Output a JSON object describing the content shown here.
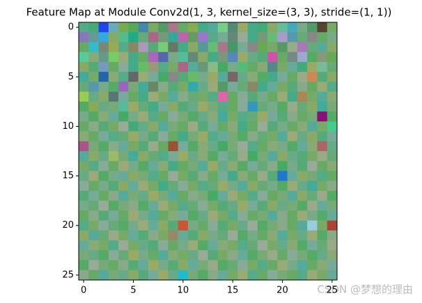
{
  "chart_data": {
    "type": "image",
    "title": "Feature Map at Module Conv2d(1, 3, kernel_size=(3, 3), stride=(1, 1))",
    "watermark": "CSDN @梦想的理由",
    "xlim": [
      -0.5,
      25.5
    ],
    "ylim": [
      25.5,
      -0.5
    ],
    "xticks": [
      0,
      5,
      10,
      15,
      20,
      25
    ],
    "yticks": [
      0,
      5,
      10,
      15,
      20,
      25
    ],
    "pixels": [
      [
        "#5a8",
        "#4a7",
        "#24e",
        "#6ab",
        "#7a5",
        "#5a5",
        "#48a",
        "#7a6",
        "#596",
        "#a78",
        "#6a6",
        "#8a5",
        "#4a8",
        "#5a9",
        "#7c8",
        "#587",
        "#9a6",
        "#4a8",
        "#4a7",
        "#8a6",
        "#6b9",
        "#4ab",
        "#7a8",
        "#596",
        "#543",
        "#7a6"
      ],
      [
        "#87b",
        "#699",
        "#3ad",
        "#8a6",
        "#5b8",
        "#2a8",
        "#6a7",
        "#a68",
        "#797",
        "#3a9",
        "#b6a",
        "#696",
        "#97c",
        "#5a8",
        "#7a9",
        "#687",
        "#9a9",
        "#4a8",
        "#797",
        "#6b7",
        "#a9c",
        "#59a",
        "#6a7",
        "#888",
        "#6a6",
        "#7a8"
      ],
      [
        "#6a6",
        "#3bc",
        "#787",
        "#9a5",
        "#5a8",
        "#886",
        "#a9b",
        "#5a7",
        "#7c7",
        "#676",
        "#4a8",
        "#8a6",
        "#599",
        "#6b7",
        "#a78",
        "#496",
        "#7a9",
        "#888",
        "#6a5",
        "#7a6",
        "#596",
        "#9a8",
        "#a7b",
        "#6a7",
        "#5a9",
        "#8a6"
      ],
      [
        "#5c9",
        "#8a7",
        "#698",
        "#7c6",
        "#9a7",
        "#4a8",
        "#6a6",
        "#a6b",
        "#56a",
        "#7a8",
        "#5b9",
        "#687",
        "#8a6",
        "#4a8",
        "#797",
        "#58b",
        "#9a6",
        "#6a8",
        "#5a7",
        "#c5a",
        "#6a6",
        "#788",
        "#9ac",
        "#5a6",
        "#897",
        "#6a5"
      ],
      [
        "#8a6",
        "#5a7",
        "#79b",
        "#6a6",
        "#8a9",
        "#4a8",
        "#6b6",
        "#997",
        "#5a8",
        "#7a6",
        "#a68",
        "#5a9",
        "#697",
        "#8b8",
        "#4a6",
        "#7a8",
        "#5b7",
        "#6a6",
        "#8a7",
        "#588",
        "#7a6",
        "#6a9",
        "#4a7",
        "#9a6",
        "#7b9",
        "#6a7"
      ],
      [
        "#4a9",
        "#7a6",
        "#26a",
        "#8a7",
        "#5a8",
        "#666",
        "#9a7",
        "#7a9",
        "#4a6",
        "#888",
        "#5a7",
        "#6b6",
        "#7a8",
        "#9a6",
        "#5a9",
        "#766",
        "#6a8",
        "#8a7",
        "#5a6",
        "#4a8",
        "#7a9",
        "#6a6",
        "#9a8",
        "#c85",
        "#5a7",
        "#8a6"
      ],
      [
        "#6a7",
        "#59a",
        "#7a8",
        "#5a6",
        "#96b",
        "#7a7",
        "#4a9",
        "#686",
        "#8a8",
        "#5a7",
        "#7a6",
        "#3aa",
        "#6a8",
        "#9a7",
        "#596",
        "#7a9",
        "#6a7",
        "#886",
        "#4a8",
        "#6a9",
        "#7a6",
        "#5a7",
        "#8a8",
        "#6a6",
        "#9a7",
        "#5a8"
      ],
      [
        "#9c5",
        "#6a8",
        "#8a6",
        "#577",
        "#7a9",
        "#6a6",
        "#4a8",
        "#9a7",
        "#7a6",
        "#5a9",
        "#8a8",
        "#6a7",
        "#7a6",
        "#5a8",
        "#d6a",
        "#6a6",
        "#8a9",
        "#5a7",
        "#7a8",
        "#6a6",
        "#9a7",
        "#4a8",
        "#a85",
        "#7a6",
        "#5a9",
        "#8a7"
      ],
      [
        "#5a6",
        "#8a5",
        "#6a8",
        "#7a7",
        "#5b9",
        "#9a6",
        "#6a7",
        "#4a8",
        "#7a9",
        "#8a6",
        "#5a7",
        "#6a8",
        "#9a6",
        "#7a7",
        "#5a8",
        "#6a6",
        "#8a9",
        "#39b",
        "#6a7",
        "#7a8",
        "#5a6",
        "#9a8",
        "#6a7",
        "#8a6",
        "#4a9",
        "#7a7"
      ],
      [
        "#7a8",
        "#5a6",
        "#8a7",
        "#6a9",
        "#4a6",
        "#7a8",
        "#9a7",
        "#5a8",
        "#6a6",
        "#8a9",
        "#7a7",
        "#5a6",
        "#6a8",
        "#8a7",
        "#4a9",
        "#7a6",
        "#5a8",
        "#6a7",
        "#9a6",
        "#7a9",
        "#5a7",
        "#8a8",
        "#6a6",
        "#7a7",
        "#817",
        "#5a6"
      ],
      [
        "#6a6",
        "#8a8",
        "#5a7",
        "#7a6",
        "#9a9",
        "#4a7",
        "#6a8",
        "#8a6",
        "#5a9",
        "#7a7",
        "#6a6",
        "#9a8",
        "#5a7",
        "#7a9",
        "#6a6",
        "#8a7",
        "#4a8",
        "#6a6",
        "#9a9",
        "#5a7",
        "#7a8",
        "#6a6",
        "#8a7",
        "#5a9",
        "#7a6",
        "#4c8"
      ],
      [
        "#8a7",
        "#6a6",
        "#7a9",
        "#5a8",
        "#6a7",
        "#9a6",
        "#7a8",
        "#5a7",
        "#8a9",
        "#6a6",
        "#4a8",
        "#7a7",
        "#9a6",
        "#5a8",
        "#6a9",
        "#7a7",
        "#5a6",
        "#8a8",
        "#6a7",
        "#7a6",
        "#5a9",
        "#9a7",
        "#6a8",
        "#8a6",
        "#5a7",
        "#7a9"
      ],
      [
        "#a58",
        "#7a7",
        "#5a6",
        "#8a8",
        "#6a9",
        "#7a6",
        "#5a7",
        "#9a8",
        "#6a6",
        "#953",
        "#7a9",
        "#5a6",
        "#8a7",
        "#6a8",
        "#4a6",
        "#7a7",
        "#9a9",
        "#5a8",
        "#6a6",
        "#8a7",
        "#7a8",
        "#5a6",
        "#6a9",
        "#8a7",
        "#a66",
        "#6a8"
      ],
      [
        "#5a9",
        "#8a6",
        "#6a8",
        "#9b6",
        "#7a7",
        "#4a9",
        "#8a6",
        "#6a7",
        "#5a8",
        "#7a9",
        "#9a6",
        "#6a8",
        "#8a7",
        "#5a6",
        "#7a9",
        "#6a7",
        "#9a8",
        "#4a6",
        "#7a7",
        "#5a9",
        "#8a6",
        "#6a8",
        "#5a7",
        "#7a6",
        "#9a8",
        "#6a7"
      ],
      [
        "#7a6",
        "#5a8",
        "#8a9",
        "#6a6",
        "#9a7",
        "#7a8",
        "#5a6",
        "#6a9",
        "#8a7",
        "#4a8",
        "#6a6",
        "#7a7",
        "#5a9",
        "#9a6",
        "#6a8",
        "#8a7",
        "#5a6",
        "#7a9",
        "#6a7",
        "#8a8",
        "#4a6",
        "#7a8",
        "#5a7",
        "#9a9",
        "#6a6",
        "#8a7"
      ],
      [
        "#6a8",
        "#9a7",
        "#5a6",
        "#7a8",
        "#6a9",
        "#8a6",
        "#7a7",
        "#5a8",
        "#6a6",
        "#9a9",
        "#7a6",
        "#5a7",
        "#8a8",
        "#6a6",
        "#7a9",
        "#4a8",
        "#8a7",
        "#6a6",
        "#9a8",
        "#5a7",
        "#27c",
        "#6a9",
        "#8a6",
        "#7a7",
        "#5a8",
        "#6a6"
      ],
      [
        "#8a9",
        "#6a6",
        "#7a8",
        "#5a7",
        "#8a6",
        "#6a9",
        "#9a7",
        "#7a6",
        "#4a8",
        "#6a7",
        "#8a9",
        "#7a6",
        "#5a8",
        "#6a7",
        "#9a6",
        "#7a8",
        "#5a9",
        "#8a6",
        "#6a7",
        "#7a8",
        "#5a6",
        "#9a7",
        "#6a8",
        "#4a9",
        "#7a6",
        "#8a8"
      ],
      [
        "#5a7",
        "#7a9",
        "#6a6",
        "#8a8",
        "#5a9",
        "#7a7",
        "#6a8",
        "#9a6",
        "#7a7",
        "#5a9",
        "#6a6",
        "#8a8",
        "#7a7",
        "#4a6",
        "#6a9",
        "#9a7",
        "#7a6",
        "#5a8",
        "#8a9",
        "#6a6",
        "#7a7",
        "#5a9",
        "#8a6",
        "#6a7",
        "#9a8",
        "#5a6"
      ],
      [
        "#7a8",
        "#6a7",
        "#9a9",
        "#5a6",
        "#7a7",
        "#8a8",
        "#5a6",
        "#6a9",
        "#9a7",
        "#7a6",
        "#5a8",
        "#6a7",
        "#8a9",
        "#7a6",
        "#5a7",
        "#6a8",
        "#9a6",
        "#7a9",
        "#5a7",
        "#8a6",
        "#6a8",
        "#7a7",
        "#5a6",
        "#9a8",
        "#6a9",
        "#7a7"
      ],
      [
        "#6a6",
        "#8a8",
        "#5a7",
        "#7a9",
        "#6a6",
        "#9a7",
        "#7a8",
        "#5a9",
        "#6a6",
        "#8a7",
        "#7a9",
        "#5a6",
        "#6a8",
        "#9a7",
        "#7a6",
        "#5a8",
        "#8a9",
        "#6a6",
        "#7a7",
        "#5a9",
        "#8a8",
        "#6a6",
        "#9a7",
        "#7a8",
        "#5a6",
        "#6a9"
      ],
      [
        "#5a8",
        "#7a6",
        "#8a9",
        "#6a7",
        "#5a6",
        "#7a8",
        "#9a7",
        "#6a9",
        "#8a6",
        "#5a7",
        "#c53",
        "#7a8",
        "#6a6",
        "#8a9",
        "#5a7",
        "#7a6",
        "#6a8",
        "#9a9",
        "#5a6",
        "#7a7",
        "#8a8",
        "#6a6",
        "#5a9",
        "#9cd",
        "#7a6",
        "#a43"
      ],
      [
        "#8a6",
        "#5a9",
        "#6a7",
        "#9a8",
        "#7a6",
        "#6a9",
        "#5a7",
        "#8a8",
        "#7a6",
        "#986",
        "#6a9",
        "#5a7",
        "#8a6",
        "#7a8",
        "#6a7",
        "#9a9",
        "#5a6",
        "#7a8",
        "#6a6",
        "#8a7",
        "#5a9",
        "#7a6",
        "#6a8",
        "#9a7",
        "#5a6",
        "#8a8"
      ],
      [
        "#6a9",
        "#8a7",
        "#7a6",
        "#5a8",
        "#9a9",
        "#7a6",
        "#6a8",
        "#5a7",
        "#8a9",
        "#6a6",
        "#7a8",
        "#9a7",
        "#5a6",
        "#6a9",
        "#8a7",
        "#7a6",
        "#5a8",
        "#6a7",
        "#9a9",
        "#7a6",
        "#6a8",
        "#8a7",
        "#5a6",
        "#7a9",
        "#6a7",
        "#9a8"
      ],
      [
        "#7a7",
        "#6a8",
        "#5a6",
        "#8a9",
        "#6a7",
        "#9a6",
        "#7a8",
        "#6a6",
        "#5a9",
        "#8a7",
        "#7a6",
        "#6a8",
        "#9a9",
        "#5a7",
        "#7a6",
        "#8a8",
        "#6a9",
        "#5a6",
        "#7a7",
        "#9a8",
        "#6a6",
        "#8a9",
        "#7a7",
        "#5a6",
        "#6a8",
        "#8a7"
      ],
      [
        "#5a6",
        "#9a9",
        "#7a7",
        "#6a6",
        "#8a8",
        "#5a7",
        "#6a9",
        "#9a6",
        "#7a8",
        "#5a7",
        "#8a6",
        "#6a9",
        "#7a7",
        "#9a8",
        "#5a6",
        "#6a7",
        "#8a9",
        "#7a6",
        "#5a8",
        "#6a6",
        "#9a7",
        "#7a8",
        "#5a9",
        "#6a6",
        "#8a7",
        "#7a9"
      ],
      [
        "#8a8",
        "#6a6",
        "#5a9",
        "#7a7",
        "#6a8",
        "#8a6",
        "#5a7",
        "#7a9",
        "#9a6",
        "#6a8",
        "#2bc",
        "#7a7",
        "#5a6",
        "#8a8",
        "#6a9",
        "#7a6",
        "#9a7",
        "#5a8",
        "#6a6",
        "#8a9",
        "#7a7",
        "#6a6",
        "#5a8",
        "#9a7",
        "#7a6",
        "#6a9"
      ]
    ]
  }
}
